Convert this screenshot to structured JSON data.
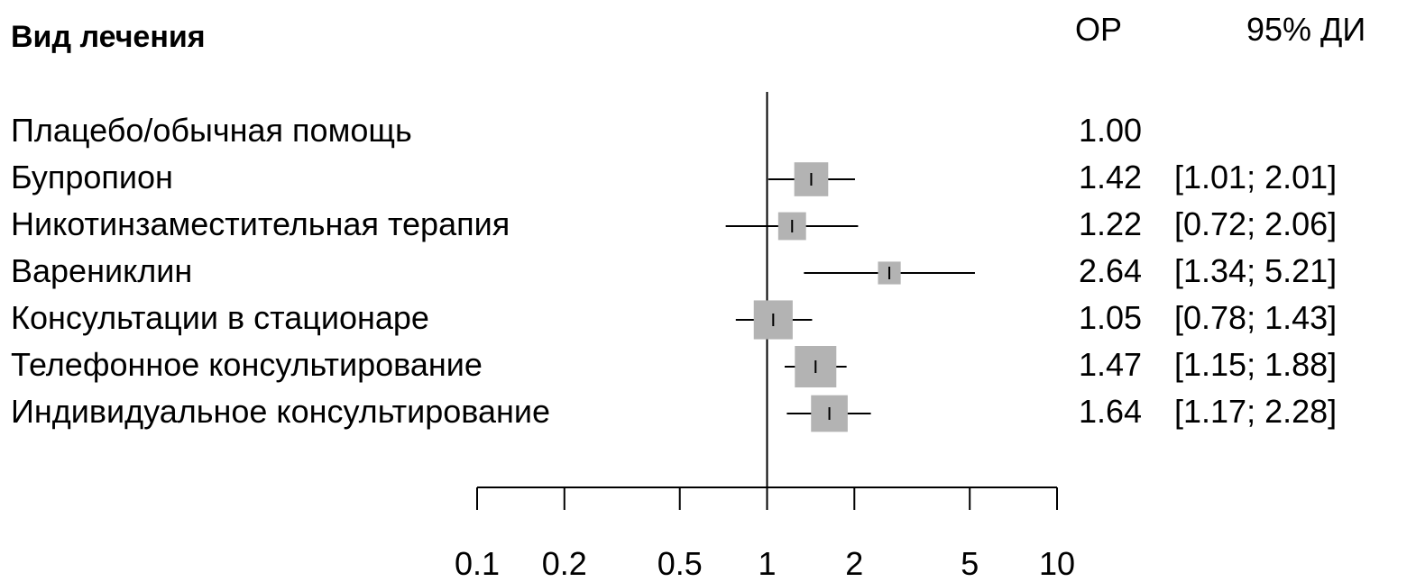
{
  "chart_data": {
    "type": "forest",
    "x_scale": "log",
    "xlim": [
      0.1,
      10
    ],
    "x_ticks": [
      "0.1",
      "0.2",
      "0.5",
      "1",
      "2",
      "5",
      "10"
    ],
    "reference_line": 1,
    "header": {
      "label_column": "Вид лечения",
      "estimate_column": "ОР",
      "ci_column": "95% ДИ"
    },
    "rows": [
      {
        "label": "Плацебо/обычная помощь",
        "est": 1.0,
        "lo": null,
        "hi": null,
        "est_text": "1.00",
        "ci_text": "",
        "weight": 0
      },
      {
        "label": "Бупропион",
        "est": 1.42,
        "lo": 1.01,
        "hi": 2.01,
        "est_text": "1.42",
        "ci_text": "[1.01; 2.01]",
        "weight": 0.67
      },
      {
        "label": "Никотинзаместительная терапия",
        "est": 1.22,
        "lo": 0.72,
        "hi": 2.06,
        "est_text": "1.22",
        "ci_text": "[0.72; 2.06]",
        "weight": 0.45
      },
      {
        "label": "Варениклин",
        "est": 2.64,
        "lo": 1.34,
        "hi": 5.21,
        "est_text": "2.64",
        "ci_text": "[1.34; 5.21]",
        "weight": 0.3
      },
      {
        "label": "Консультации в стационаре",
        "est": 1.05,
        "lo": 0.78,
        "hi": 1.43,
        "est_text": "1.05",
        "ci_text": "[0.78; 1.43]",
        "weight": 0.88
      },
      {
        "label": "Телефонное консультирование",
        "est": 1.47,
        "lo": 1.15,
        "hi": 1.88,
        "est_text": "1.47",
        "ci_text": "[1.15; 1.88]",
        "weight": 1.0
      },
      {
        "label": "Индивидуальное консультирование",
        "est": 1.64,
        "lo": 1.17,
        "hi": 2.28,
        "est_text": "1.64",
        "ci_text": "[1.17; 2.28]",
        "weight": 0.78
      }
    ],
    "colors": {
      "box": "#b3b3b3",
      "line": "#000000"
    }
  }
}
